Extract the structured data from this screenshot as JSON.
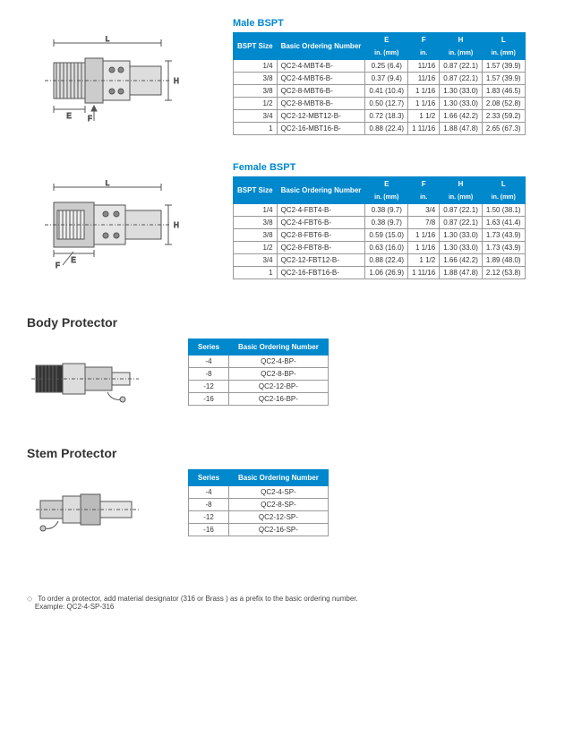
{
  "male": {
    "title": "Male BSPT",
    "headers": {
      "size": "BSPT Size",
      "basic": "Basic Ordering Number",
      "E": "E",
      "F": "F",
      "H": "H",
      "L": "L",
      "sub": "in. (mm)",
      "subF": "in."
    },
    "rows": [
      {
        "size": "1/4",
        "num": "QC2-4-MBT4-B-",
        "E": "0.25  (6.4)",
        "F": "11/16",
        "H": "0.87 (22.1)",
        "L": "1.57 (39.9)"
      },
      {
        "size": "3/8",
        "num": "QC2-4-MBT6-B-",
        "E": "0.37  (9.4)",
        "F": "11/16",
        "H": "0.87 (22.1)",
        "L": "1.57 (39.9)"
      },
      {
        "size": "3/8",
        "num": "QC2-8-MBT6-B-",
        "E": "0.41 (10.4)",
        "F": "1 1/16",
        "H": "1.30 (33.0)",
        "L": "1.83 (46.5)"
      },
      {
        "size": "1/2",
        "num": "QC2-8-MBT8-B-",
        "E": "0.50 (12.7)",
        "F": "1 1/16",
        "H": "1.30 (33.0)",
        "L": "2.08 (52.8)"
      },
      {
        "size": "3/4",
        "num": "QC2-12-MBT12-B-",
        "E": "0.72 (18.3)",
        "F": "1 1/2",
        "H": "1.66 (42.2)",
        "L": "2.33 (59.2)"
      },
      {
        "size": "1",
        "num": "QC2-16-MBT16-B-",
        "E": "0.88 (22.4)",
        "F": "1 11/16",
        "H": "1.88 (47.8)",
        "L": "2.65 (67.3)"
      }
    ]
  },
  "female": {
    "title": "Female BSPT",
    "headers": {
      "size": "BSPT Size",
      "basic": "Basic Ordering Number",
      "E": "E",
      "F": "F",
      "H": "H",
      "L": "L",
      "sub": "in. (mm)",
      "subF": "in."
    },
    "rows": [
      {
        "size": "1/4",
        "num": "QC2-4-FBT4-B-",
        "E": "0.38  (9.7)",
        "F": "3/4",
        "H": "0.87 (22.1)",
        "L": "1.50 (38.1)"
      },
      {
        "size": "3/8",
        "num": "QC2-4-FBT6-B-",
        "E": "0.38  (9.7)",
        "F": "7/8",
        "H": "0.87 (22.1)",
        "L": "1.63 (41.4)"
      },
      {
        "size": "3/8",
        "num": "QC2-8-FBT6-B-",
        "E": "0.59 (15.0)",
        "F": "1 1/16",
        "H": "1.30 (33.0)",
        "L": "1.73 (43.9)"
      },
      {
        "size": "1/2",
        "num": "QC2-8-FBT8-B-",
        "E": "0.63 (16.0)",
        "F": "1 1/16",
        "H": "1.30 (33.0)",
        "L": "1.73 (43.9)"
      },
      {
        "size": "3/4",
        "num": "QC2-12-FBT12-B-",
        "E": "0.88 (22.4)",
        "F": "1 1/2",
        "H": "1.66 (42.2)",
        "L": "1.89 (48.0)"
      },
      {
        "size": "1",
        "num": "QC2-16-FBT16-B-",
        "E": "1.06 (26.9)",
        "F": "1 11/16",
        "H": "1.88 (47.8)",
        "L": "2.12 (53.8)"
      }
    ]
  },
  "body_protector": {
    "title": "Body Protector",
    "headers": {
      "series": "Series",
      "basic": "Basic Ordering Number"
    },
    "rows": [
      {
        "series": "-4",
        "num": "QC2-4-BP-"
      },
      {
        "series": "-8",
        "num": "QC2-8-BP-"
      },
      {
        "series": "-12",
        "num": "QC2-12-BP-"
      },
      {
        "series": "-16",
        "num": "QC2-16-BP-"
      }
    ]
  },
  "stem_protector": {
    "title": "Stem Protector",
    "headers": {
      "series": "Series",
      "basic": "Basic Ordering Number"
    },
    "rows": [
      {
        "series": "-4",
        "num": "QC2-4-SP-"
      },
      {
        "series": "-8",
        "num": "QC2-8-SP-"
      },
      {
        "series": "-12",
        "num": "QC2-12-SP-"
      },
      {
        "series": "-16",
        "num": "QC2-16-SP-"
      }
    ]
  },
  "footnote": {
    "line1": "To order a protector, add material designator (316 or Brass ) as a prefix to the basic ordering number.",
    "line2": "Example: QC2-4-SP-316"
  },
  "colors": {
    "header_bg": "#0088cc",
    "title_color": "#0088cc",
    "border": "#999999"
  }
}
